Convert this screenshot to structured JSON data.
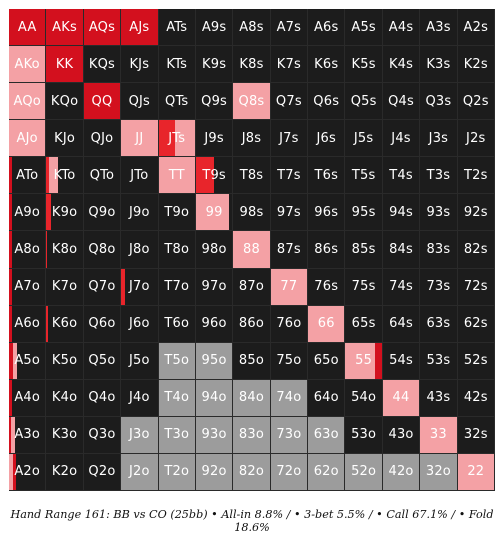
{
  "colors": {
    "allin": "#d3101e",
    "threebet": "#e8252b",
    "call": "#f4a1a5",
    "fold": "#1c1c1c",
    "blocked": "#9c9c9c"
  },
  "grid": {
    "rows": [
      [
        "AA",
        "AKs",
        "AQs",
        "AJs",
        "ATs",
        "A9s",
        "A8s",
        "A7s",
        "A6s",
        "A5s",
        "A4s",
        "A3s",
        "A2s"
      ],
      [
        "AKo",
        "KK",
        "KQs",
        "KJs",
        "KTs",
        "K9s",
        "K8s",
        "K7s",
        "K6s",
        "K5s",
        "K4s",
        "K3s",
        "K2s"
      ],
      [
        "AQo",
        "KQo",
        "QQ",
        "QJs",
        "QTs",
        "Q9s",
        "Q8s",
        "Q7s",
        "Q6s",
        "Q5s",
        "Q4s",
        "Q3s",
        "Q2s"
      ],
      [
        "AJo",
        "KJo",
        "QJo",
        "JJ",
        "JTs",
        "J9s",
        "J8s",
        "J7s",
        "J6s",
        "J5s",
        "J4s",
        "J3s",
        "J2s"
      ],
      [
        "ATo",
        "KTo",
        "QTo",
        "JTo",
        "TT",
        "T9s",
        "T8s",
        "T7s",
        "T6s",
        "T5s",
        "T4s",
        "T3s",
        "T2s"
      ],
      [
        "A9o",
        "K9o",
        "Q9o",
        "J9o",
        "T9o",
        "99",
        "98s",
        "97s",
        "96s",
        "95s",
        "94s",
        "93s",
        "92s"
      ],
      [
        "A8o",
        "K8o",
        "Q8o",
        "J8o",
        "T8o",
        "98o",
        "88",
        "87s",
        "86s",
        "85s",
        "84s",
        "83s",
        "82s"
      ],
      [
        "A7o",
        "K7o",
        "Q7o",
        "J7o",
        "T7o",
        "97o",
        "87o",
        "77",
        "76s",
        "75s",
        "74s",
        "73s",
        "72s"
      ],
      [
        "A6o",
        "K6o",
        "Q6o",
        "J6o",
        "T6o",
        "96o",
        "86o",
        "76o",
        "66",
        "65s",
        "64s",
        "63s",
        "62s"
      ],
      [
        "A5o",
        "K5o",
        "Q5o",
        "J5o",
        "T5o",
        "95o",
        "85o",
        "75o",
        "65o",
        "55",
        "54s",
        "53s",
        "52s"
      ],
      [
        "A4o",
        "K4o",
        "Q4o",
        "J4o",
        "T4o",
        "94o",
        "84o",
        "74o",
        "64o",
        "54o",
        "44",
        "43s",
        "42s"
      ],
      [
        "A3o",
        "K3o",
        "Q3o",
        "J3o",
        "T3o",
        "93o",
        "83o",
        "73o",
        "63o",
        "53o",
        "43o",
        "33",
        "32s"
      ],
      [
        "A2o",
        "K2o",
        "Q2o",
        "J2o",
        "T2o",
        "92o",
        "82o",
        "72o",
        "62o",
        "52o",
        "42o",
        "32o",
        "22"
      ]
    ],
    "strategies": {
      "AA": [
        [
          1.0,
          "allin"
        ]
      ],
      "AKs": [
        [
          1.0,
          "allin"
        ]
      ],
      "AQs": [
        [
          1.0,
          "allin"
        ]
      ],
      "AJs": [
        [
          1.0,
          "allin"
        ]
      ],
      "AKo": [
        [
          1.0,
          "call"
        ]
      ],
      "KK": [
        [
          1.0,
          "allin"
        ]
      ],
      "AQo": [
        [
          1.0,
          "call"
        ]
      ],
      "QQ": [
        [
          1.0,
          "allin"
        ]
      ],
      "Q8s": [
        [
          1.0,
          "call"
        ]
      ],
      "AJo": [
        [
          1.0,
          "call"
        ]
      ],
      "JJ": [
        [
          1.0,
          "call"
        ]
      ],
      "JTs": [
        [
          0.45,
          "threebet"
        ],
        [
          0.55,
          "call"
        ]
      ],
      "ATo": [
        [
          0.08,
          "allin"
        ]
      ],
      "KTo": [
        [
          0.08,
          "threebet"
        ],
        [
          0.24,
          "call"
        ]
      ],
      "TT": [
        [
          1.0,
          "call"
        ]
      ],
      "T9s": [
        [
          0.5,
          "threebet"
        ],
        [
          0.5,
          "fold"
        ]
      ],
      "A9o": [
        [
          0.07,
          "allin"
        ]
      ],
      "K9o": [
        [
          0.12,
          "threebet"
        ]
      ],
      "99": [
        [
          0.92,
          "call"
        ],
        [
          0.08,
          "fold"
        ]
      ],
      "A8o": [
        [
          0.09,
          "allin"
        ]
      ],
      "K8o": [
        [
          0.03,
          "threebet"
        ]
      ],
      "88": [
        [
          1.0,
          "call"
        ]
      ],
      "A7o": [
        [
          0.08,
          "allin"
        ]
      ],
      "J7o": [
        [
          0.1,
          "threebet"
        ]
      ],
      "77": [
        [
          1.0,
          "call"
        ]
      ],
      "A6o": [
        [
          0.08,
          "allin"
        ]
      ],
      "K6o": [
        [
          0.04,
          "threebet"
        ]
      ],
      "66": [
        [
          1.0,
          "call"
        ]
      ],
      "A5o": [
        [
          0.1,
          "allin"
        ],
        [
          0.12,
          "call"
        ]
      ],
      "55": [
        [
          0.8,
          "call"
        ],
        [
          0.2,
          "allin"
        ]
      ],
      "A4o": [
        [
          0.08,
          "allin"
        ]
      ],
      "44": [
        [
          1.0,
          "call"
        ]
      ],
      "A3o": [
        [
          0.06,
          "allin"
        ],
        [
          0.1,
          "call"
        ]
      ],
      "33": [
        [
          1.0,
          "call"
        ]
      ],
      "A2o": [
        [
          0.12,
          "call"
        ],
        [
          0.08,
          "allin"
        ]
      ],
      "22": [
        [
          1.0,
          "call"
        ]
      ]
    },
    "blocked": [
      "T5o",
      "95o",
      "T4o",
      "94o",
      "84o",
      "74o",
      "J3o",
      "T3o",
      "93o",
      "83o",
      "73o",
      "63o",
      "J2o",
      "T2o",
      "92o",
      "82o",
      "72o",
      "62o",
      "52o",
      "42o",
      "32o"
    ]
  },
  "caption": "Hand Range 161: BB vs CO (25bb) • All-in 8.8% / • 3-bet 5.5% / • Call 67.1% / • Fold 18.6%"
}
